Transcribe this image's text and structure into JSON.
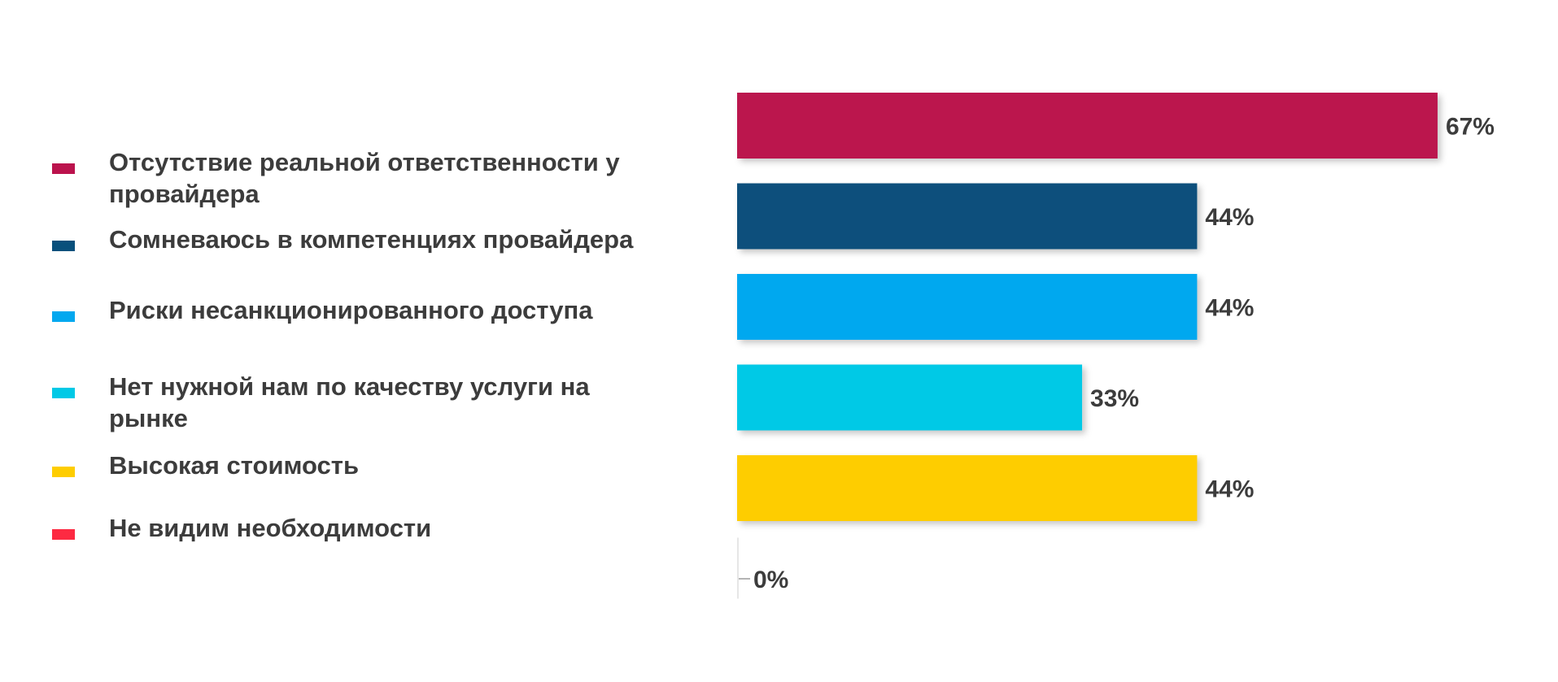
{
  "chart_data": {
    "type": "bar",
    "orientation": "horizontal",
    "unit": "%",
    "xlim": [
      0,
      100
    ],
    "grid": false,
    "legend_position": "left",
    "categories": [
      "Отсутствие реальной ответственности у провайдера",
      "Сомневаюсь в компетенциях провайдера",
      "Риски несанкционированного доступа",
      "Нет нужной нам по качеству услуги на рынке",
      "Высокая стоимость",
      "Не видим необходимости"
    ],
    "values": [
      67,
      44,
      44,
      33,
      44,
      0
    ],
    "value_labels": [
      "67%",
      "44%",
      "44%",
      "33%",
      "44%",
      "0%"
    ],
    "colors": [
      "#bb134d",
      "#08507c",
      "#03a8ef",
      "#00c9e6",
      "#fecd00",
      "#fd2a42"
    ],
    "legend": [
      {
        "lines": [
          "Отсутствие реальной ответственности у",
          "провайдера"
        ]
      },
      {
        "lines": [
          "Сомневаюсь в компетенциях провайдера"
        ]
      },
      {
        "lines": [
          "Риски несанкционированного доступа"
        ]
      },
      {
        "lines": [
          "Нет нужной нам по качеству услуги на",
          "рынке"
        ]
      },
      {
        "lines": [
          "Высокая стоимость"
        ]
      },
      {
        "lines": [
          "Не видим необходимости"
        ]
      }
    ]
  }
}
